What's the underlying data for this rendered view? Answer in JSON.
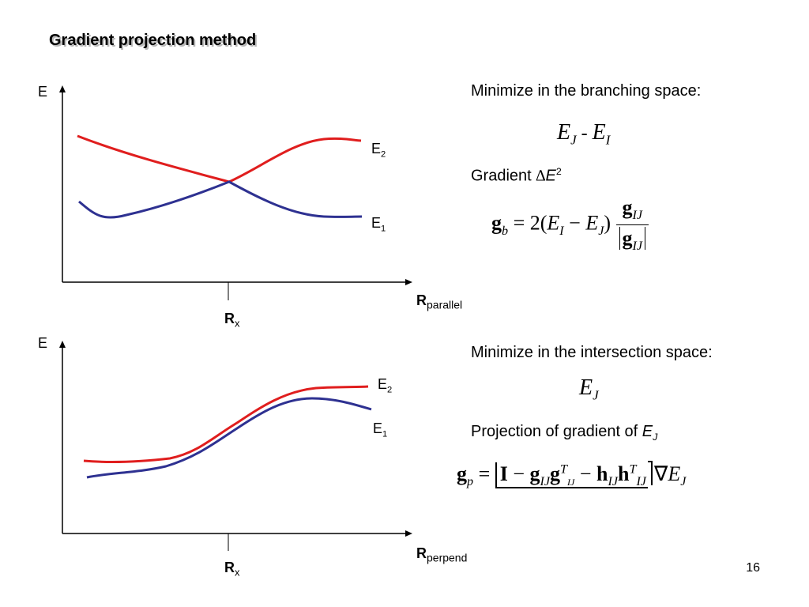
{
  "title": "Gradient projection method",
  "page_number": "16",
  "colors": {
    "e2_curve": "#e01e1e",
    "e1_curve": "#2e3191"
  },
  "top_plot": {
    "y_axis_label": "E",
    "x_axis_label_main": "R",
    "x_axis_label_sub": "parallel",
    "tick_label_main": "R",
    "tick_label_sub": "x",
    "e2_label_main": "E",
    "e2_label_sub": "2",
    "e1_label_main": "E",
    "e1_label_sub": "1"
  },
  "bottom_plot": {
    "y_axis_label": "E",
    "x_axis_label_main": "R",
    "x_axis_label_sub": "perpend",
    "tick_label_main": "R",
    "tick_label_sub": "x",
    "e2_label_main": "E",
    "e2_label_sub": "2",
    "e1_label_main": "E",
    "e1_label_sub": "1"
  },
  "top_text": {
    "heading": "Minimize in the branching space:",
    "expr_E": "E",
    "expr_J": "J",
    "expr_minus": " - ",
    "expr_I": "I",
    "gradient_label": "Gradient ",
    "delta": "∆",
    "gradient_E": "E",
    "gradient_sup": "2",
    "eq_lhs_g": "g",
    "eq_lhs_sub": "b",
    "eq_equals": " = 2(",
    "eq_EI": "E",
    "eq_I": "I",
    "eq_minus": " − ",
    "eq_EJ": "E",
    "eq_J": "J",
    "eq_close": ")",
    "eq_num_g": "g",
    "eq_num_sub": "IJ",
    "eq_den_g": "g",
    "eq_den_sub": "IJ"
  },
  "bottom_text": {
    "heading": "Minimize in the intersection space:",
    "expr_E": "E",
    "expr_J": "J",
    "projection_label": "Projection of gradient of ",
    "projection_E": "E",
    "projection_J": "J",
    "eq_g": "g",
    "eq_g_sub": "p",
    "eq_equals": " = ",
    "eq_I": "I",
    "eq_minus1": " − ",
    "eq_g2": "g",
    "eq_g2_sub": "IJ",
    "eq_g3": "g",
    "eq_g3_sup": "T",
    "eq_g3_sub": "IJ",
    "eq_minus2": " − ",
    "eq_h1": "h",
    "eq_h1_sub": "IJ",
    "eq_h2": "h",
    "eq_h2_sup": "T",
    "eq_h2_sub": "IJ",
    "eq_nabla": "∇",
    "eq_E": "E",
    "eq_E_sub": "J"
  }
}
